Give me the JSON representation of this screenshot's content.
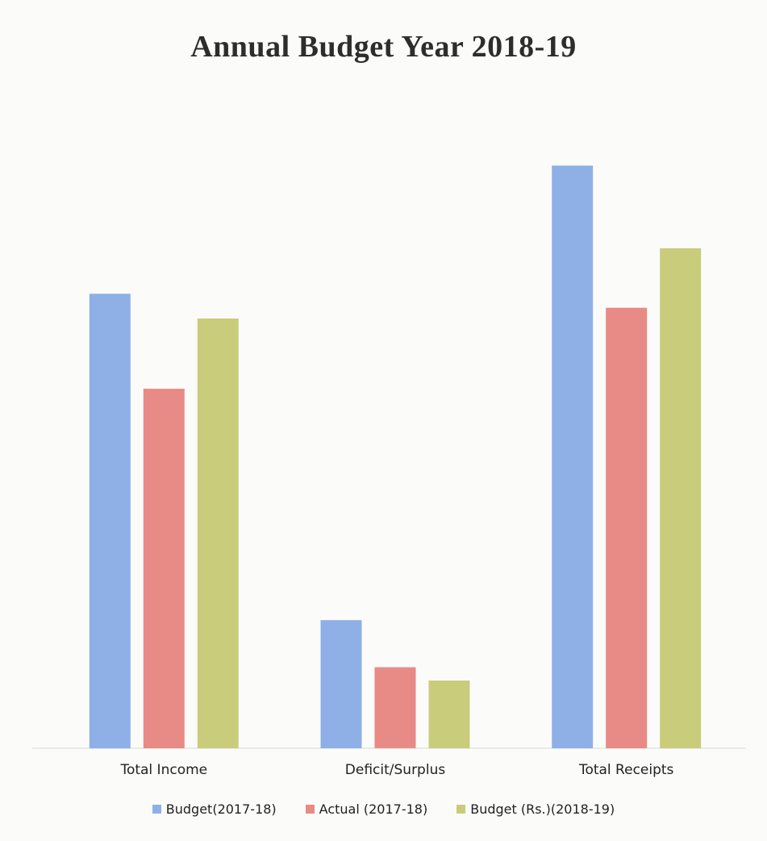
{
  "chart_data": {
    "type": "bar",
    "title": "Annual Budget Year 2018-19",
    "xlabel": "",
    "ylabel": "",
    "categories": [
      "Total Income",
      "Deficit/Surplus",
      "Total Receipts"
    ],
    "series": [
      {
        "name": "Budget(2017-18)",
        "color": "#8fb0e6",
        "values": [
          550,
          155,
          705
        ]
      },
      {
        "name": "Actual (2017-18)",
        "color": "#e88a86",
        "values": [
          435,
          98,
          533
        ]
      },
      {
        "name": "Budget (Rs.)(2018-19)",
        "color": "#c9cc7a",
        "values": [
          520,
          82,
          605
        ]
      }
    ],
    "ylim": [
      0,
      720
    ],
    "grid": false,
    "legend_position": "bottom"
  }
}
